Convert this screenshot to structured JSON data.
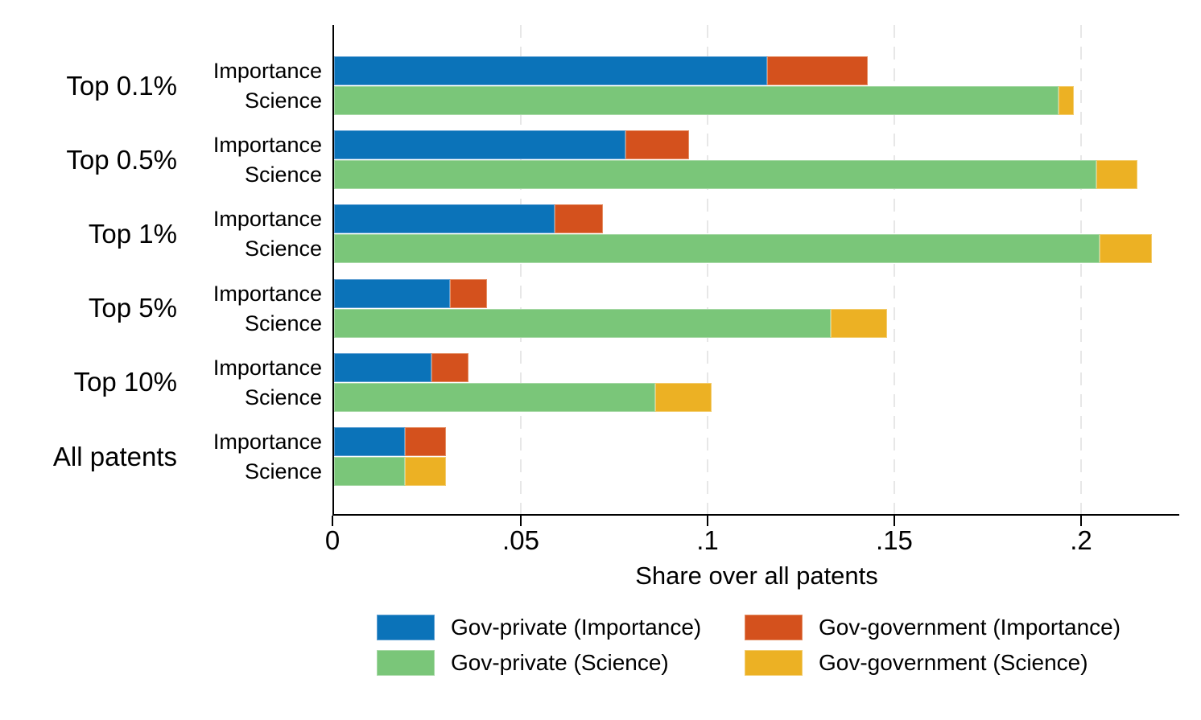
{
  "chart_data": {
    "type": "bar",
    "orientation": "horizontal",
    "stacked": true,
    "title": "",
    "xlabel": "Share over all patents",
    "xlim": [
      0,
      0.2263
    ],
    "grid": "vertical-dashed",
    "legend_position": "bottom",
    "xticks": {
      "values": [
        0,
        0.05,
        0.1,
        0.15,
        0.2
      ],
      "labels": [
        "0",
        ".05",
        ".1",
        ".15",
        ".2"
      ]
    },
    "colors": {
      "gov_private_importance": {
        "fill": "#0b73b9",
        "border": "#5e9fd2"
      },
      "gov_government_importance": {
        "fill": "#d4511d",
        "border": "#e48e64"
      },
      "gov_private_science": {
        "fill": "#7ac679",
        "border": "#a8d9a7"
      },
      "gov_government_science": {
        "fill": "#ecb124",
        "border": "#f3cd70"
      }
    },
    "legend": [
      {
        "label": "Gov-private (Importance)",
        "color": "gov_private_importance"
      },
      {
        "label": "Gov-government (Importance)",
        "color": "gov_government_importance"
      },
      {
        "label": "Gov-private (Science)",
        "color": "gov_private_science"
      },
      {
        "label": "Gov-government (Science)",
        "color": "gov_government_science"
      }
    ],
    "groups": [
      {
        "label": "Top 0.1%",
        "bars": [
          {
            "label": "Importance",
            "segments": [
              {
                "series": "gov_private_importance",
                "value": 0.116
              },
              {
                "series": "gov_government_importance",
                "value": 0.027
              }
            ]
          },
          {
            "label": "Science",
            "segments": [
              {
                "series": "gov_private_science",
                "value": 0.194
              },
              {
                "series": "gov_government_science",
                "value": 0.004
              }
            ]
          }
        ]
      },
      {
        "label": "Top 0.5%",
        "bars": [
          {
            "label": "Importance",
            "segments": [
              {
                "series": "gov_private_importance",
                "value": 0.078
              },
              {
                "series": "gov_government_importance",
                "value": 0.017
              }
            ]
          },
          {
            "label": "Science",
            "segments": [
              {
                "series": "gov_private_science",
                "value": 0.204
              },
              {
                "series": "gov_government_science",
                "value": 0.011
              }
            ]
          }
        ]
      },
      {
        "label": "Top 1%",
        "bars": [
          {
            "label": "Importance",
            "segments": [
              {
                "series": "gov_private_importance",
                "value": 0.059
              },
              {
                "series": "gov_government_importance",
                "value": 0.013
              }
            ]
          },
          {
            "label": "Science",
            "segments": [
              {
                "series": "gov_private_science",
                "value": 0.205
              },
              {
                "series": "gov_government_science",
                "value": 0.014
              }
            ]
          }
        ]
      },
      {
        "label": "Top 5%",
        "bars": [
          {
            "label": "Importance",
            "segments": [
              {
                "series": "gov_private_importance",
                "value": 0.031
              },
              {
                "series": "gov_government_importance",
                "value": 0.01
              }
            ]
          },
          {
            "label": "Science",
            "segments": [
              {
                "series": "gov_private_science",
                "value": 0.133
              },
              {
                "series": "gov_government_science",
                "value": 0.015
              }
            ]
          }
        ]
      },
      {
        "label": "Top 10%",
        "bars": [
          {
            "label": "Importance",
            "segments": [
              {
                "series": "gov_private_importance",
                "value": 0.026
              },
              {
                "series": "gov_government_importance",
                "value": 0.01
              }
            ]
          },
          {
            "label": "Science",
            "segments": [
              {
                "series": "gov_private_science",
                "value": 0.086
              },
              {
                "series": "gov_government_science",
                "value": 0.015
              }
            ]
          }
        ]
      },
      {
        "label": "All patents",
        "bars": [
          {
            "label": "Importance",
            "segments": [
              {
                "series": "gov_private_importance",
                "value": 0.019
              },
              {
                "series": "gov_government_importance",
                "value": 0.011
              }
            ]
          },
          {
            "label": "Science",
            "segments": [
              {
                "series": "gov_private_science",
                "value": 0.019
              },
              {
                "series": "gov_government_science",
                "value": 0.011
              }
            ]
          }
        ]
      }
    ]
  }
}
